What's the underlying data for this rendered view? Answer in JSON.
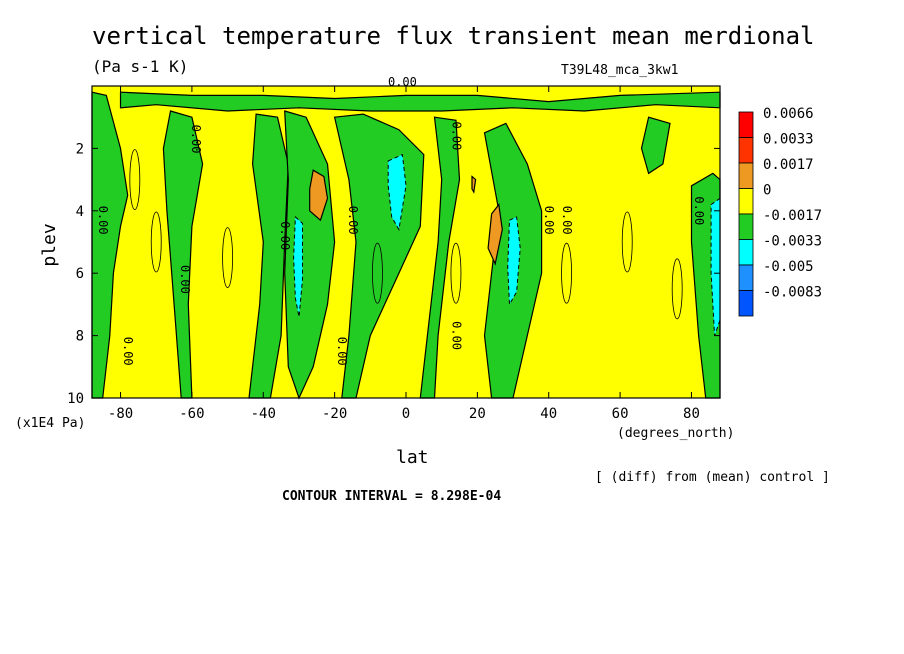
{
  "title": "vertical temperature flux transient mean merdional",
  "units": "(Pa s-1 K)",
  "run_label": "T39L48_mca_3kw1",
  "y_unit": "(x1E4 Pa)",
  "x_unit": "(degrees_north)",
  "footer": {
    "diff_note": "[ (diff) from (mean) control ]",
    "contour_interval": "CONTOUR INTERVAL = 8.298E-04"
  },
  "chart_data": {
    "type": "heatmap",
    "xlabel": "lat",
    "ylabel": "plev",
    "xlim": [
      -88,
      88
    ],
    "ylim": [
      10,
      0
    ],
    "x_ticks": [
      -80,
      -60,
      -40,
      -20,
      0,
      20,
      40,
      60,
      80
    ],
    "x_tick_labels": [
      "-80",
      "-60",
      "-40",
      "-20",
      "0",
      "20",
      "40",
      "60",
      "80"
    ],
    "y_ticks": [
      2,
      4,
      6,
      8,
      10
    ],
    "y_tick_labels": [
      "2",
      "4",
      "6",
      "8",
      "10"
    ],
    "colorbar": {
      "levels": [
        "0.0066",
        "0.0033",
        "0.0017",
        "0",
        "-0.0017",
        "-0.0033",
        "-0.005",
        "-0.0083"
      ],
      "colors": [
        "#ff0000",
        "#ff3300",
        "#ee9a22",
        "#ffff00",
        "#22cc22",
        "#00ffff",
        "#1e90ff",
        "#0055ff"
      ]
    },
    "contour_labels": [
      "0.00"
    ],
    "regions": [
      {
        "name": "green-south-pole",
        "value": -0.0008,
        "points": [
          [
            -88,
            0.2
          ],
          [
            -84,
            0.3
          ],
          [
            -80,
            2
          ],
          [
            -78,
            3.5
          ],
          [
            -80,
            4.5
          ],
          [
            -82,
            6
          ],
          [
            -83,
            8
          ],
          [
            -85,
            10
          ],
          [
            -88,
            10
          ]
        ]
      },
      {
        "name": "green-top-band",
        "value": -0.0008,
        "points": [
          [
            -80,
            0.2
          ],
          [
            -60,
            0.3
          ],
          [
            -40,
            0.3
          ],
          [
            -20,
            0.4
          ],
          [
            0,
            0.3
          ],
          [
            20,
            0.3
          ],
          [
            40,
            0.5
          ],
          [
            60,
            0.3
          ],
          [
            88,
            0.2
          ],
          [
            88,
            0.7
          ],
          [
            70,
            0.6
          ],
          [
            50,
            0.8
          ],
          [
            30,
            0.7
          ],
          [
            10,
            0.8
          ],
          [
            -10,
            0.8
          ],
          [
            -30,
            0.7
          ],
          [
            -50,
            0.8
          ],
          [
            -70,
            0.6
          ],
          [
            -80,
            0.7
          ]
        ]
      },
      {
        "name": "green-m62",
        "value": -0.0008,
        "points": [
          [
            -66,
            0.8
          ],
          [
            -60,
            1.0
          ],
          [
            -57,
            2.5
          ],
          [
            -60,
            4.5
          ],
          [
            -61,
            7
          ],
          [
            -60,
            10
          ],
          [
            -63,
            10
          ],
          [
            -65,
            7
          ],
          [
            -67,
            4
          ],
          [
            -68,
            2
          ]
        ]
      },
      {
        "name": "green-m42",
        "value": -0.0008,
        "points": [
          [
            -42,
            0.9
          ],
          [
            -36,
            1.0
          ],
          [
            -33,
            2.5
          ],
          [
            -34,
            5
          ],
          [
            -35,
            8
          ],
          [
            -38,
            10
          ],
          [
            -44,
            10
          ],
          [
            -41,
            7
          ],
          [
            -40,
            5
          ],
          [
            -43,
            2.5
          ]
        ]
      },
      {
        "name": "green-m32",
        "value": -0.0008,
        "points": [
          [
            -34,
            0.8
          ],
          [
            -28,
            1.0
          ],
          [
            -22,
            2.5
          ],
          [
            -20,
            5
          ],
          [
            -22,
            7
          ],
          [
            -26,
            9
          ],
          [
            -30,
            10
          ],
          [
            -33,
            9
          ],
          [
            -34,
            6
          ],
          [
            -33,
            3
          ]
        ]
      },
      {
        "name": "green-equator",
        "value": -0.0008,
        "points": [
          [
            -20,
            1.0
          ],
          [
            -12,
            0.9
          ],
          [
            -2,
            1.4
          ],
          [
            5,
            2.2
          ],
          [
            4,
            4.5
          ],
          [
            -2,
            6
          ],
          [
            -6,
            7
          ],
          [
            -10,
            8
          ],
          [
            -14,
            10
          ],
          [
            -18,
            10
          ],
          [
            -16,
            8
          ],
          [
            -14,
            5
          ],
          [
            -16,
            3
          ]
        ]
      },
      {
        "name": "green-p10",
        "value": -0.0008,
        "points": [
          [
            8,
            1.0
          ],
          [
            14,
            1.1
          ],
          [
            15,
            3
          ],
          [
            12,
            5
          ],
          [
            9,
            8
          ],
          [
            8,
            10
          ],
          [
            4,
            10
          ],
          [
            6,
            8
          ],
          [
            9,
            5
          ],
          [
            10,
            3
          ]
        ]
      },
      {
        "name": "green-p20",
        "value": -0.0008,
        "points": [
          [
            22,
            1.5
          ],
          [
            28,
            1.2
          ],
          [
            34,
            2.5
          ],
          [
            38,
            4
          ],
          [
            38,
            6
          ],
          [
            34,
            8
          ],
          [
            30,
            10
          ],
          [
            24,
            10
          ],
          [
            22,
            8
          ],
          [
            24,
            6
          ],
          [
            26,
            4
          ]
        ]
      },
      {
        "name": "green-p70",
        "value": -0.0008,
        "points": [
          [
            68,
            1.0
          ],
          [
            74,
            1.2
          ],
          [
            72,
            2.5
          ],
          [
            68,
            2.8
          ],
          [
            66,
            2
          ]
        ]
      },
      {
        "name": "green-north-pole",
        "value": -0.0008,
        "points": [
          [
            80,
            3.2
          ],
          [
            86,
            2.8
          ],
          [
            88,
            3
          ],
          [
            88,
            10
          ],
          [
            84,
            10
          ],
          [
            82,
            8
          ],
          [
            80,
            5
          ]
        ]
      },
      {
        "name": "orange-m26",
        "value": 0.0021,
        "points": [
          [
            -26,
            2.7
          ],
          [
            -23,
            2.9
          ],
          [
            -22,
            3.6
          ],
          [
            -24,
            4.3
          ],
          [
            -27,
            4.0
          ],
          [
            -27,
            3.3
          ]
        ]
      },
      {
        "name": "orange-p24",
        "value": 0.0021,
        "points": [
          [
            24,
            4.1
          ],
          [
            26,
            3.8
          ],
          [
            27,
            4.6
          ],
          [
            25,
            5.7
          ],
          [
            23,
            5.2
          ]
        ]
      },
      {
        "name": "orange-p19",
        "value": 0.0021,
        "points": [
          [
            18.5,
            2.9
          ],
          [
            19.5,
            3.0
          ],
          [
            19,
            3.4
          ],
          [
            18.5,
            3.3
          ]
        ]
      },
      {
        "name": "cyan-m30",
        "value": -0.0021,
        "points": [
          [
            -31,
            4.2
          ],
          [
            -29,
            4.4
          ],
          [
            -29,
            6.2
          ],
          [
            -30,
            7.4
          ],
          [
            -31,
            6.8
          ],
          [
            -31.5,
            5.5
          ]
        ]
      },
      {
        "name": "cyan-m3",
        "value": -0.0021,
        "points": [
          [
            -5,
            2.4
          ],
          [
            -1,
            2.2
          ],
          [
            0,
            3.2
          ],
          [
            -2,
            4.6
          ],
          [
            -4,
            4.2
          ],
          [
            -5,
            3.2
          ]
        ]
      },
      {
        "name": "cyan-p30",
        "value": -0.0021,
        "points": [
          [
            29,
            4.3
          ],
          [
            31,
            4.2
          ],
          [
            32,
            5.2
          ],
          [
            31,
            6.6
          ],
          [
            29,
            7.0
          ],
          [
            28.5,
            5.8
          ]
        ]
      },
      {
        "name": "cyan-p86",
        "value": -0.0021,
        "points": [
          [
            85.5,
            3.8
          ],
          [
            88,
            3.6
          ],
          [
            88,
            7.5
          ],
          [
            86.5,
            8
          ],
          [
            85.5,
            6
          ]
        ]
      }
    ]
  }
}
